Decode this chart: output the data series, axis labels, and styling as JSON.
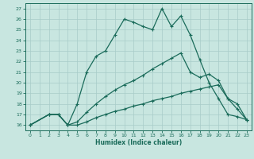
{
  "xlabel": "Humidex (Indice chaleur)",
  "bg_color": "#c8e6e0",
  "line_color": "#1a6b5a",
  "grid_color": "#a8ccc8",
  "xlim": [
    -0.5,
    23.5
  ],
  "ylim": [
    15.5,
    27.5
  ],
  "xticks": [
    0,
    1,
    2,
    3,
    4,
    5,
    6,
    7,
    8,
    9,
    10,
    11,
    12,
    13,
    14,
    15,
    16,
    17,
    18,
    19,
    20,
    21,
    22,
    23
  ],
  "yticks": [
    16,
    17,
    18,
    19,
    20,
    21,
    22,
    23,
    24,
    25,
    26,
    27
  ],
  "curve1_x": [
    0,
    2,
    3,
    4,
    5,
    6,
    7,
    8,
    9,
    10,
    11,
    12,
    13,
    14,
    15,
    16,
    17,
    18,
    19,
    20,
    21,
    22,
    23
  ],
  "curve1_y": [
    16,
    17,
    17,
    16,
    18,
    21,
    22.5,
    23,
    24.5,
    26,
    25.7,
    25.3,
    25.0,
    27.0,
    25.3,
    26.3,
    24.5,
    22.2,
    20.0,
    18.5,
    17.0,
    16.8,
    16.5
  ],
  "curve2_x": [
    0,
    2,
    3,
    4,
    5,
    6,
    7,
    8,
    9,
    10,
    11,
    12,
    13,
    14,
    15,
    16,
    17,
    18,
    19,
    20,
    21,
    22,
    23
  ],
  "curve2_y": [
    16,
    17,
    17,
    16,
    16.3,
    17.2,
    18.0,
    18.7,
    19.3,
    19.8,
    20.2,
    20.7,
    21.3,
    21.8,
    22.3,
    22.8,
    21.0,
    20.5,
    20.8,
    20.2,
    18.5,
    18.0,
    16.5
  ],
  "curve3_x": [
    0,
    2,
    3,
    4,
    5,
    6,
    7,
    8,
    9,
    10,
    11,
    12,
    13,
    14,
    15,
    16,
    17,
    18,
    19,
    20,
    21,
    22,
    23
  ],
  "curve3_y": [
    16,
    17,
    17,
    16,
    16.0,
    16.3,
    16.7,
    17.0,
    17.3,
    17.5,
    17.8,
    18.0,
    18.3,
    18.5,
    18.7,
    19.0,
    19.2,
    19.4,
    19.6,
    19.8,
    18.5,
    17.5,
    16.5
  ]
}
